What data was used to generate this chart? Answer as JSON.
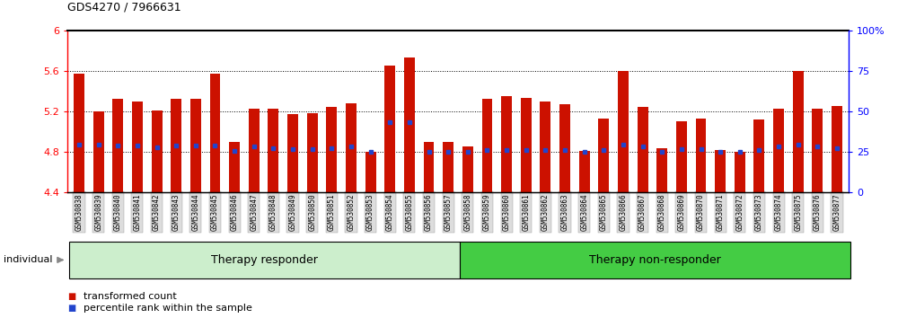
{
  "title": "GDS4270 / 7966631",
  "samples": [
    "GSM530838",
    "GSM530839",
    "GSM530840",
    "GSM530841",
    "GSM530842",
    "GSM530843",
    "GSM530844",
    "GSM530845",
    "GSM530846",
    "GSM530847",
    "GSM530848",
    "GSM530849",
    "GSM530850",
    "GSM530851",
    "GSM530852",
    "GSM530853",
    "GSM530854",
    "GSM530855",
    "GSM530856",
    "GSM530857",
    "GSM530858",
    "GSM530859",
    "GSM530860",
    "GSM530861",
    "GSM530862",
    "GSM530863",
    "GSM530864",
    "GSM530865",
    "GSM530866",
    "GSM530867",
    "GSM530868",
    "GSM530869",
    "GSM530870",
    "GSM530871",
    "GSM530872",
    "GSM530873",
    "GSM530874",
    "GSM530875",
    "GSM530876",
    "GSM530877"
  ],
  "bar_values": [
    5.57,
    5.2,
    5.32,
    5.3,
    5.21,
    5.32,
    5.32,
    5.57,
    4.9,
    5.23,
    5.23,
    5.17,
    5.18,
    5.24,
    5.28,
    4.8,
    5.65,
    5.73,
    4.9,
    4.9,
    4.85,
    5.32,
    5.35,
    5.33,
    5.3,
    5.27,
    4.81,
    5.13,
    5.6,
    5.24,
    4.84,
    5.1,
    5.13,
    4.82,
    4.8,
    5.12,
    5.23,
    5.6,
    5.23,
    5.25
  ],
  "percentile_values": [
    4.875,
    4.87,
    4.862,
    4.862,
    4.847,
    4.862,
    4.862,
    4.862,
    4.808,
    4.852,
    4.835,
    4.824,
    4.824,
    4.84,
    4.851,
    4.8,
    5.097,
    5.097,
    4.8,
    4.8,
    4.8,
    4.82,
    4.82,
    4.82,
    4.82,
    4.82,
    4.8,
    4.82,
    4.875,
    4.851,
    4.8,
    4.831,
    4.831,
    4.8,
    4.8,
    4.82,
    4.851,
    4.875,
    4.851,
    4.84
  ],
  "group1_label": "Therapy responder",
  "group2_label": "Therapy non-responder",
  "group1_count": 20,
  "bar_color": "#cc1100",
  "dot_color": "#2244cc",
  "group1_bg_color": "#cceecc",
  "group2_bg_color": "#44cc44",
  "ymin": 4.4,
  "ymax": 6.0,
  "yticks": [
    4.4,
    4.8,
    5.2,
    5.6,
    6.0
  ],
  "ytick_labels": [
    "4.4",
    "4.8",
    "5.2",
    "5.6",
    "6"
  ],
  "grid_lines": [
    4.8,
    5.2,
    5.6
  ],
  "right_ytick_pcts": [
    0,
    25,
    50,
    75,
    100
  ],
  "right_ytick_labels": [
    "0",
    "25",
    "50",
    "75",
    "100%"
  ]
}
